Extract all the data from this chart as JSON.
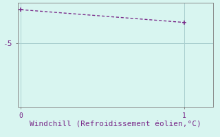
{
  "x_data": [
    0,
    1
  ],
  "y_data": [
    -2.1,
    -3.2
  ],
  "line_color": "#7B2D8B",
  "marker_color": "#7B2D8B",
  "background_color": "#d8f5f0",
  "grid_color": "#aacfcf",
  "axis_color": "#888888",
  "text_color": "#7B2D8B",
  "xlabel": "Windchill (Refroidissement éolien,°C)",
  "xlabel_fontsize": 8,
  "ytick_labels": [
    "-5"
  ],
  "ytick_values": [
    -5
  ],
  "xtick_values": [
    0,
    1
  ],
  "xlim": [
    -0.02,
    1.18
  ],
  "ylim": [
    -10.5,
    -1.5
  ],
  "font_family": "monospace"
}
